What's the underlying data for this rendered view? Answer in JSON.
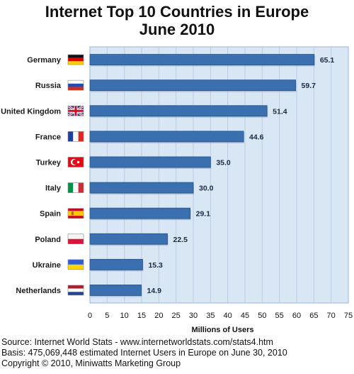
{
  "header": {
    "title_line1": "Internet Top 10 Countries in Europe",
    "title_line2": "June 2010"
  },
  "footer": {
    "source": "Source: Internet World Stats  -  www.internetworldstats.com/stats4.htm",
    "basis": "Basis: 475,069,448 estimated Internet  Users in Europe on June 30, 2010",
    "copyright": "Copyright © 2010, Miniwatts Marketing Group"
  },
  "chart_data": {
    "type": "bar",
    "orientation": "horizontal",
    "title": "Internet Top 10 Countries in Europe June 2010",
    "xlabel": "Millions of Users",
    "ylabel": "",
    "xlim": [
      0,
      75
    ],
    "xticks": [
      0,
      5,
      10,
      15,
      20,
      25,
      30,
      35,
      40,
      45,
      50,
      55,
      60,
      65,
      70,
      75
    ],
    "grid": true,
    "categories": [
      "Germany",
      "Russia",
      "United Kingdom",
      "France",
      "Turkey",
      "Italy",
      "Spain",
      "Poland",
      "Ukraine",
      "Netherlands"
    ],
    "values": [
      65.1,
      59.7,
      51.4,
      44.6,
      35.0,
      30.0,
      29.1,
      22.5,
      15.3,
      14.9
    ],
    "value_labels": [
      "65.1",
      "59.7",
      "51.4",
      "44.6",
      "35.0",
      "30.0",
      "29.1",
      "22.5",
      "15.3",
      "14.9"
    ],
    "flags": [
      "germany-flag-icon",
      "russia-flag-icon",
      "uk-flag-icon",
      "france-flag-icon",
      "turkey-flag-icon",
      "italy-flag-icon",
      "spain-flag-icon",
      "poland-flag-icon",
      "ukraine-flag-icon",
      "netherlands-flag-icon"
    ],
    "colors": {
      "bar": "#3a6fb0",
      "plot_bg": "#d9e6f4",
      "grid": "#b8cde4"
    }
  }
}
